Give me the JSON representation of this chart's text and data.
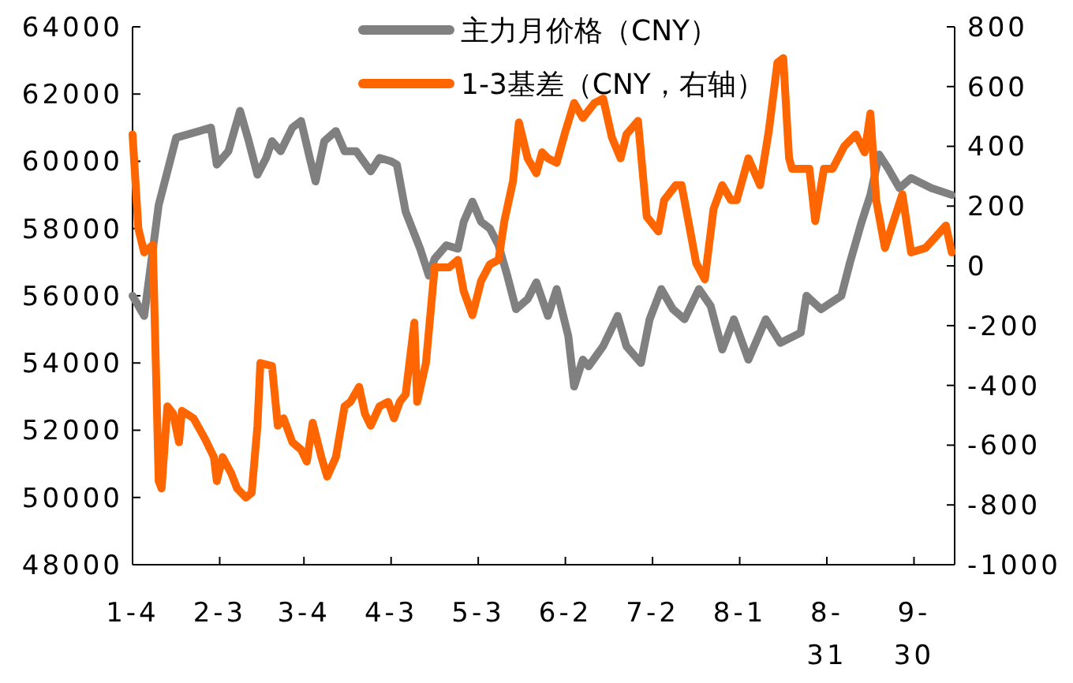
{
  "chart_data": {
    "type": "line",
    "xlim": [
      "--01-04",
      "--10-14"
    ],
    "xticks": [
      {
        "value": "--01-04",
        "label": "1-4"
      },
      {
        "value": "--02-03",
        "label": "2-3"
      },
      {
        "value": "--03-04",
        "label": "3-4"
      },
      {
        "value": "--04-03",
        "label": "4-3"
      },
      {
        "value": "--05-03",
        "label": "5-3"
      },
      {
        "value": "--06-02",
        "label": "6-2"
      },
      {
        "value": "--07-02",
        "label": "7-2"
      },
      {
        "value": "--08-01",
        "label": "8-1"
      },
      {
        "value": "--08-31",
        "label": "8-31"
      },
      {
        "value": "--09-30",
        "label": "9-30"
      }
    ],
    "ylim": [
      48000,
      64000
    ],
    "yticks": [
      48000,
      50000,
      52000,
      54000,
      56000,
      58000,
      60000,
      62000,
      64000
    ],
    "y2lim": [
      -1000,
      800
    ],
    "y2ticks": [
      -1000,
      -800,
      -600,
      -400,
      -200,
      0,
      200,
      400,
      600,
      800
    ],
    "legend": "top",
    "grid": false,
    "line_style": "solid",
    "marker": "none",
    "series": [
      {
        "name": "主力月价格（CNY）",
        "color": "#808080",
        "x": [
          "--01-04",
          "--01-08",
          "--01-13",
          "--01-19",
          "--01-31",
          "--02-02",
          "--02-06",
          "--02-10",
          "--02-13",
          "--02-16",
          "--02-19",
          "--02-21",
          "--02-24",
          "--02-28",
          "--03-03",
          "--03-06",
          "--03-08",
          "--03-11",
          "--03-15",
          "--03-18",
          "--03-22",
          "--03-27",
          "--03-30",
          "--04-03",
          "--04-05",
          "--04-08",
          "--04-13",
          "--04-16",
          "--04-18",
          "--04-22",
          "--04-26",
          "--04-28",
          "--05-01",
          "--05-04",
          "--05-07",
          "--05-10",
          "--05-13",
          "--05-16",
          "--05-20",
          "--05-23",
          "--05-27",
          "--05-30",
          "--06-03",
          "--06-05",
          "--06-08",
          "--06-10",
          "--06-15",
          "--06-20",
          "--06-23",
          "--06-28",
          "--07-01",
          "--07-05",
          "--07-09",
          "--07-13",
          "--07-18",
          "--07-22",
          "--07-26",
          "--07-30",
          "--08-04",
          "--08-10",
          "--08-15",
          "--08-22",
          "--08-24",
          "--08-29",
          "--09-05",
          "--09-08",
          "--09-12",
          "--09-15",
          "--09-18",
          "--09-21",
          "--09-25",
          "--09-29",
          "--10-06",
          "--10-13"
        ],
        "values": [
          56000,
          55400,
          58700,
          60700,
          61000,
          59900,
          60300,
          61500,
          60600,
          59600,
          60100,
          60600,
          60300,
          61000,
          61200,
          60100,
          59400,
          60600,
          60900,
          60300,
          60300,
          59700,
          60100,
          60000,
          59900,
          58500,
          57400,
          56600,
          57100,
          57500,
          57400,
          58200,
          58800,
          58200,
          58000,
          57500,
          56600,
          55600,
          55900,
          56400,
          55400,
          56200,
          54800,
          53300,
          54100,
          53900,
          54500,
          55400,
          54500,
          54000,
          55300,
          56200,
          55600,
          55300,
          56200,
          55700,
          54400,
          55300,
          54100,
          55300,
          54600,
          54900,
          56000,
          55600,
          56000,
          57000,
          58200,
          59000,
          60200,
          59800,
          59200,
          59500,
          59200,
          59000
        ]
      },
      {
        "name": "1-3基差（CNY，右轴）",
        "color": "#ff6600",
        "axis": "y2",
        "x": [
          "--01-04",
          "--01-06",
          "--01-08",
          "--01-11",
          "--01-12",
          "--01-13",
          "--01-14",
          "--01-16",
          "--01-18",
          "--01-20",
          "--01-21",
          "--01-25",
          "--01-29",
          "--02-01",
          "--02-02",
          "--02-04",
          "--02-07",
          "--02-09",
          "--02-12",
          "--02-14",
          "--02-16",
          "--02-17",
          "--02-21",
          "--02-23",
          "--02-25",
          "--02-28",
          "--03-03",
          "--03-05",
          "--03-07",
          "--03-10",
          "--03-12",
          "--03-15",
          "--03-18",
          "--03-20",
          "--03-23",
          "--03-25",
          "--03-27",
          "--03-30",
          "--04-02",
          "--04-04",
          "--04-06",
          "--04-08",
          "--04-11",
          "--04-12",
          "--04-15",
          "--04-18",
          "--04-20",
          "--04-23",
          "--04-26",
          "--04-28",
          "--05-01",
          "--05-04",
          "--05-07",
          "--05-10",
          "--05-12",
          "--05-15",
          "--05-17",
          "--05-20",
          "--05-23",
          "--05-25",
          "--05-27",
          "--05-30",
          "--06-02",
          "--06-05",
          "--06-08",
          "--06-12",
          "--06-15",
          "--06-18",
          "--06-21",
          "--06-23",
          "--06-27",
          "--06-30",
          "--07-04",
          "--07-06",
          "--07-10",
          "--07-12",
          "--07-15",
          "--07-17",
          "--07-20",
          "--07-23",
          "--07-26",
          "--07-29",
          "--07-31",
          "--08-04",
          "--08-08",
          "--08-11",
          "--08-14",
          "--08-16",
          "--08-18",
          "--08-19",
          "--08-25",
          "--08-27",
          "--08-30",
          "--09-02",
          "--09-06",
          "--09-10",
          "--09-13",
          "--09-15",
          "--09-17",
          "--09-20",
          "--09-23",
          "--09-26",
          "--09-29",
          "--10-04",
          "--10-11",
          "--10-13"
        ],
        "values": [
          440,
          125,
          45,
          70,
          -325,
          -720,
          -745,
          -470,
          -495,
          -590,
          -485,
          -510,
          -580,
          -640,
          -720,
          -640,
          -695,
          -745,
          -775,
          -760,
          -535,
          -325,
          -335,
          -535,
          -510,
          -590,
          -615,
          -655,
          -525,
          -640,
          -705,
          -640,
          -470,
          -455,
          -405,
          -495,
          -535,
          -470,
          -455,
          -510,
          -455,
          -430,
          -190,
          -455,
          -325,
          -5,
          -5,
          -5,
          20,
          -85,
          -165,
          -50,
          5,
          20,
          150,
          285,
          480,
          360,
          310,
          380,
          360,
          345,
          450,
          545,
          495,
          545,
          560,
          430,
          360,
          440,
          485,
          165,
          115,
          220,
          270,
          270,
          115,
          10,
          -45,
          190,
          270,
          220,
          220,
          360,
          270,
          450,
          680,
          695,
          360,
          325,
          325,
          150,
          325,
          325,
          400,
          440,
          380,
          510,
          220,
          60,
          150,
          240,
          45,
          60,
          135,
          45
        ]
      }
    ]
  }
}
